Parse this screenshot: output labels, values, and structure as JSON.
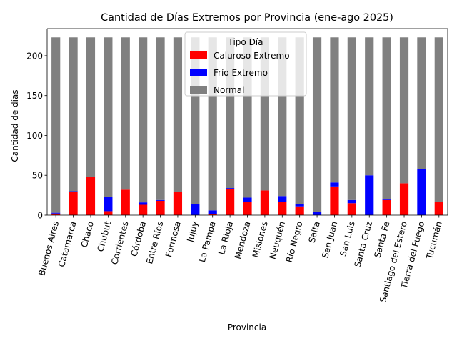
{
  "chart_data": {
    "type": "bar",
    "stacked": true,
    "title": "Cantidad de Días Extremos por Provincia (ene-ago 2025)",
    "xlabel": "Provincia",
    "ylabel": "Cantidad de días",
    "ylim": [
      0,
      234
    ],
    "yticks": [
      0,
      50,
      100,
      150,
      200
    ],
    "legend": {
      "title": "Tipo Día",
      "placement": "top-center"
    },
    "categories": [
      "Buenos Aires",
      "Catamarca",
      "Chaco",
      "Chubut",
      "Corrientes",
      "Córdoba",
      "Entre Ríos",
      "Formosa",
      "Jujuy",
      "La Pampa",
      "La Rioja",
      "Mendoza",
      "Misiones",
      "Neuquén",
      "Río Negro",
      "Salta",
      "San Juan",
      "San Luis",
      "Santa Cruz",
      "Santa Fe",
      "Santiago del Estero",
      "Tierra del Fuego",
      "Tucumán"
    ],
    "series": [
      {
        "name": "Caluroso Extremo",
        "color": "#ff0000",
        "values": [
          2,
          29,
          48,
          5,
          32,
          13,
          18,
          29,
          0,
          1,
          33,
          17,
          31,
          17,
          11,
          0,
          36,
          15,
          0,
          19,
          40,
          0,
          17
        ]
      },
      {
        "name": "Frío Extremo",
        "color": "#0000ff",
        "values": [
          1,
          1,
          0,
          18,
          0,
          3,
          1,
          0,
          14,
          5,
          1,
          5,
          0,
          7,
          3,
          4,
          5,
          4,
          50,
          1,
          0,
          58,
          0
        ]
      },
      {
        "name": "Normal",
        "color": "#808080",
        "values": [
          220,
          193,
          175,
          200,
          191,
          207,
          204,
          194,
          209,
          217,
          189,
          201,
          192,
          199,
          209,
          219,
          182,
          204,
          173,
          203,
          183,
          165,
          206
        ]
      }
    ]
  }
}
